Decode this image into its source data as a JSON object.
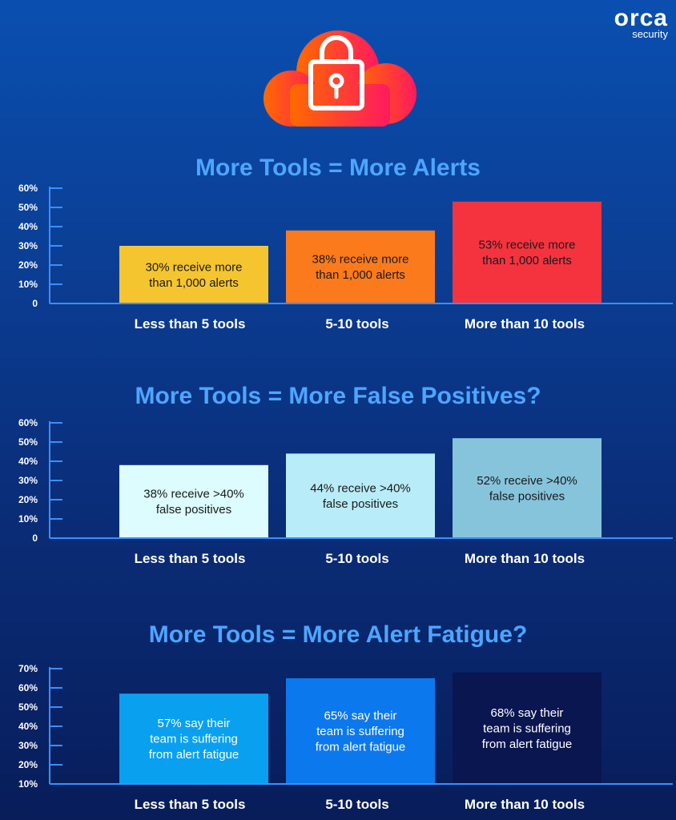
{
  "brand": {
    "name": "orca",
    "tagline": "security"
  },
  "hero_icon": "cloud-padlock-icon",
  "colors": {
    "title": "#4da6ff",
    "axis": "#3a8fff",
    "text": "#ffffff"
  },
  "chart_data": [
    {
      "type": "bar",
      "title": "More Tools = More Alerts",
      "categories": [
        "Less than 5 tools",
        "5-10 tools",
        "More than 10 tools"
      ],
      "values": [
        30,
        38,
        53
      ],
      "labels": [
        [
          "30% receive more",
          "than 1,000 alerts"
        ],
        [
          "38% receive more",
          "than 1,000 alerts"
        ],
        [
          "53% receive more",
          "than 1,000 alerts"
        ]
      ],
      "bar_colors": [
        "#f5c530",
        "#fb7a1c",
        "#f5333f"
      ],
      "label_colors": [
        "#1a1a1a",
        "#1a1a1a",
        "#1a1a1a"
      ],
      "yticks": [
        "0",
        "10%",
        "20%",
        "30%",
        "40%",
        "50%",
        "60%"
      ],
      "ylim": [
        0,
        60
      ]
    },
    {
      "type": "bar",
      "title": "More Tools = More False Positives?",
      "categories": [
        "Less than 5 tools",
        "5-10 tools",
        "More than 10 tools"
      ],
      "values": [
        38,
        44,
        52
      ],
      "labels": [
        [
          "38% receive >40%",
          "false positives"
        ],
        [
          "44% receive >40%",
          "false positives"
        ],
        [
          "52% receive >40%",
          "false positives"
        ]
      ],
      "bar_colors": [
        "#dcfcfd",
        "#b8ecf8",
        "#86c4dc"
      ],
      "label_colors": [
        "#1a1a1a",
        "#1a1a1a",
        "#1a1a1a"
      ],
      "yticks": [
        "0",
        "10%",
        "20%",
        "30%",
        "40%",
        "50%",
        "60%"
      ],
      "ylim": [
        0,
        60
      ]
    },
    {
      "type": "bar",
      "title": "More Tools = More Alert Fatigue?",
      "categories": [
        "Less than 5 tools",
        "5-10 tools",
        "More than 10 tools"
      ],
      "values": [
        57,
        65,
        68
      ],
      "labels": [
        [
          "57% say their",
          "team is suffering",
          "from alert fatigue"
        ],
        [
          "65% say their",
          "team is suffering",
          "from alert fatigue"
        ],
        [
          "68% say their",
          "team is suffering",
          "from alert fatigue"
        ]
      ],
      "bar_colors": [
        "#0aa0f0",
        "#0c78ee",
        "#0a1650"
      ],
      "label_colors": [
        "#ffffff",
        "#ffffff",
        "#ffffff"
      ],
      "yticks": [
        "10%",
        "20%",
        "30%",
        "40%",
        "50%",
        "60%",
        "70%"
      ],
      "ylim": [
        10,
        70
      ]
    }
  ]
}
